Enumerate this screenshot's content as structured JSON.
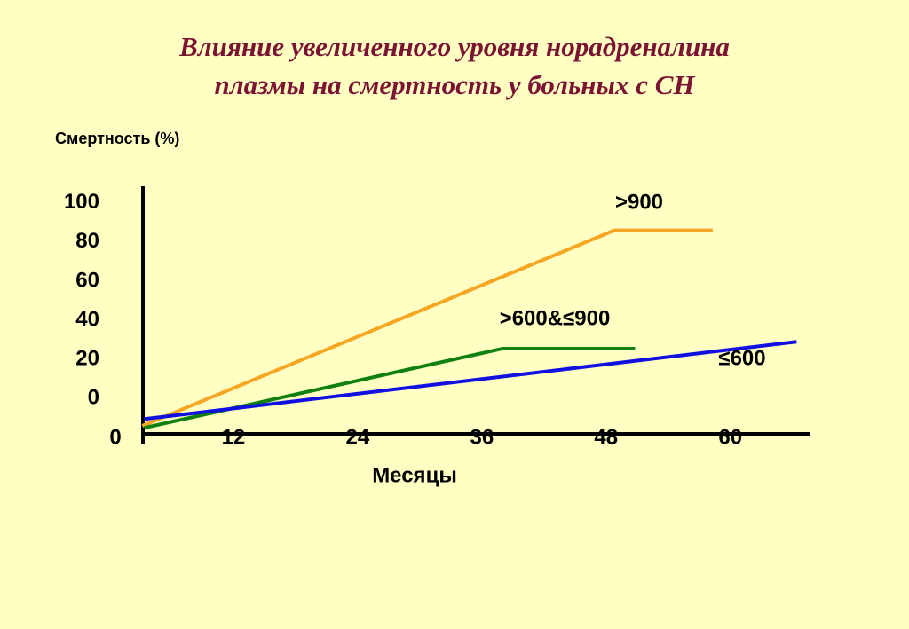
{
  "chart_data": {
    "type": "line",
    "title": [
      "Влияние увеличенного уровня норадреналина",
      "плазмы на смертность у больных с СН"
    ],
    "y_label": "Смертность (%)",
    "x_label": "Месяцы",
    "xlim": [
      0,
      68
    ],
    "xticks": [
      0,
      12,
      24,
      36,
      48,
      60
    ],
    "ylim": [
      -19,
      109
    ],
    "yticks": [
      0,
      20,
      40,
      60,
      80,
      100
    ],
    "grid": false,
    "series": [
      {
        "name": ">900",
        "color": "#f5a623",
        "x": [
          3.2,
          48.8,
          58.3
        ],
        "values": [
          -14,
          86,
          86
        ]
      },
      {
        "name": ">600&≤900",
        "color": "#108010",
        "x": [
          3.4,
          38,
          50.8
        ],
        "values": [
          -15,
          25.5,
          25.5
        ]
      },
      {
        "name": "≤600",
        "color": "#1010e0",
        "x": [
          3.4,
          66.4
        ],
        "values": [
          -10.5,
          29
        ]
      }
    ]
  }
}
